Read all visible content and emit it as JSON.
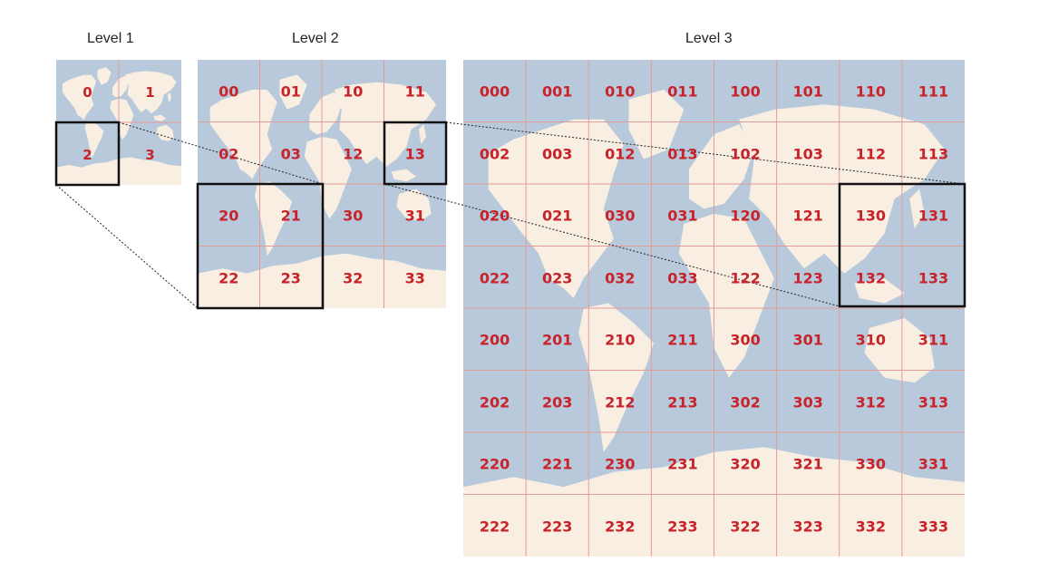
{
  "levels": [
    {
      "title": "Level 1",
      "tiles": [
        [
          "0",
          "1"
        ],
        [
          "2",
          "3"
        ]
      ]
    },
    {
      "title": "Level 2",
      "tiles": [
        [
          "00",
          "01",
          "10",
          "11"
        ],
        [
          "02",
          "03",
          "12",
          "13"
        ],
        [
          "20",
          "21",
          "30",
          "31"
        ],
        [
          "22",
          "23",
          "32",
          "33"
        ]
      ]
    },
    {
      "title": "Level 3",
      "tiles": [
        [
          "000",
          "001",
          "010",
          "011",
          "100",
          "101",
          "110",
          "111"
        ],
        [
          "002",
          "003",
          "012",
          "013",
          "102",
          "103",
          "112",
          "113"
        ],
        [
          "020",
          "021",
          "030",
          "031",
          "120",
          "121",
          "130",
          "131"
        ],
        [
          "022",
          "023",
          "032",
          "033",
          "122",
          "123",
          "132",
          "133"
        ],
        [
          "200",
          "201",
          "210",
          "211",
          "300",
          "301",
          "310",
          "311"
        ],
        [
          "202",
          "203",
          "212",
          "213",
          "302",
          "303",
          "312",
          "313"
        ],
        [
          "220",
          "221",
          "230",
          "231",
          "320",
          "321",
          "330",
          "331"
        ],
        [
          "222",
          "223",
          "232",
          "233",
          "322",
          "323",
          "332",
          "333"
        ]
      ]
    }
  ],
  "colors": {
    "ocean": "#b8c9db",
    "land": "#f8efe2",
    "grid": "#e59a9a",
    "label": "#c8232b",
    "highlight": "#111111"
  }
}
